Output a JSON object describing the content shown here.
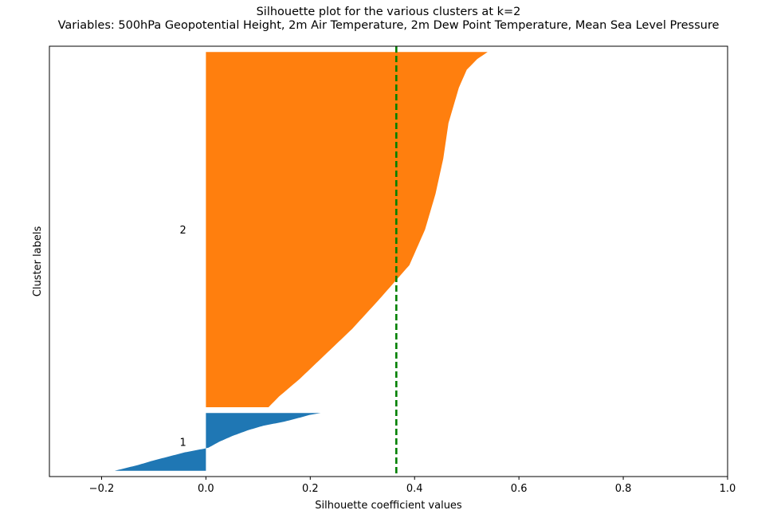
{
  "chart_data": {
    "type": "bar",
    "title": "Silhouette plot for the various clusters at k=2",
    "subtitle": "Variables: 500hPa Geopotential Height, 2m Air Temperature, 2m Dew Point Temperature, Mean Sea Level Pressure",
    "xlabel": "Silhouette coefficient values",
    "ylabel": "Cluster labels",
    "xlim": [
      -0.3,
      1.0
    ],
    "xticks": [
      "−0.2",
      "0.0",
      "0.2",
      "0.4",
      "0.6",
      "0.8",
      "1.0"
    ],
    "xtick_values": [
      -0.2,
      0.0,
      0.2,
      0.4,
      0.6,
      0.8,
      1.0
    ],
    "grid": false,
    "average_silhouette": 0.365,
    "average_line_color": "#008000",
    "clusters": [
      {
        "label": "1",
        "color": "#1f77b4",
        "size": 100,
        "profile": [
          [
            0.0,
            0.22
          ],
          [
            0.03,
            0.2
          ],
          [
            0.08,
            0.18
          ],
          [
            0.15,
            0.15
          ],
          [
            0.22,
            0.11
          ],
          [
            0.3,
            0.08
          ],
          [
            0.4,
            0.05
          ],
          [
            0.5,
            0.025
          ],
          [
            0.6,
            0.005
          ],
          [
            0.62,
            -0.005
          ],
          [
            0.68,
            -0.04
          ],
          [
            0.75,
            -0.07
          ],
          [
            0.82,
            -0.1
          ],
          [
            0.9,
            -0.13
          ],
          [
            1.0,
            -0.175
          ]
        ]
      },
      {
        "label": "2",
        "color": "#ff7f0e",
        "size": 615,
        "profile": [
          [
            0.0,
            0.54
          ],
          [
            0.02,
            0.52
          ],
          [
            0.05,
            0.5
          ],
          [
            0.1,
            0.485
          ],
          [
            0.2,
            0.465
          ],
          [
            0.3,
            0.455
          ],
          [
            0.4,
            0.44
          ],
          [
            0.5,
            0.42
          ],
          [
            0.6,
            0.39
          ],
          [
            0.7,
            0.33
          ],
          [
            0.78,
            0.28
          ],
          [
            0.85,
            0.23
          ],
          [
            0.92,
            0.18
          ],
          [
            0.97,
            0.14
          ],
          [
            1.0,
            0.12
          ]
        ]
      }
    ]
  }
}
